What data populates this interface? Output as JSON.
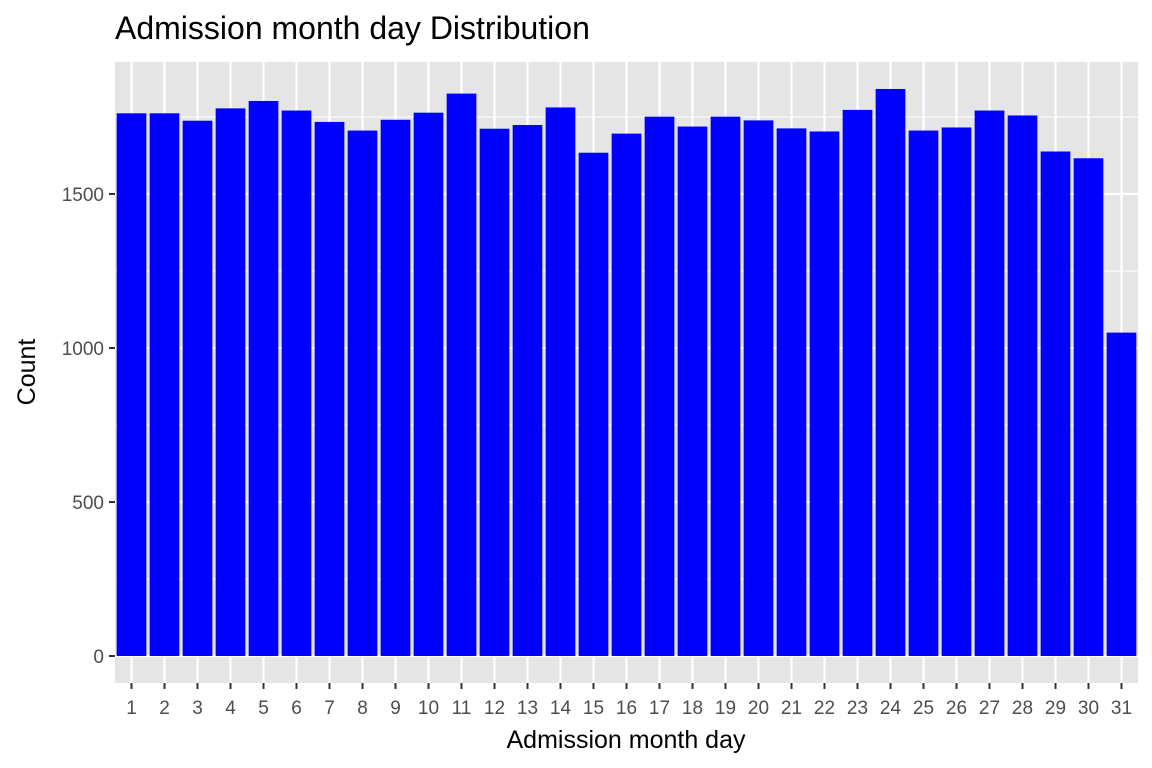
{
  "chart_data": {
    "type": "bar",
    "title": "Admission month day Distribution",
    "xlabel": "Admission month day",
    "ylabel": "Count",
    "categories": [
      "1",
      "2",
      "3",
      "4",
      "5",
      "6",
      "7",
      "8",
      "9",
      "10",
      "11",
      "12",
      "13",
      "14",
      "15",
      "16",
      "17",
      "18",
      "19",
      "20",
      "21",
      "22",
      "23",
      "24",
      "25",
      "26",
      "27",
      "28",
      "29",
      "30",
      "31"
    ],
    "values": [
      1762,
      1762,
      1738,
      1778,
      1802,
      1771,
      1734,
      1706,
      1741,
      1764,
      1826,
      1712,
      1724,
      1781,
      1634,
      1696,
      1751,
      1719,
      1751,
      1739,
      1713,
      1703,
      1773,
      1841,
      1706,
      1716,
      1771,
      1755,
      1638,
      1616,
      1050
    ],
    "ylim": [
      0,
      1900
    ],
    "yticks": [
      0,
      500,
      1000,
      1500
    ],
    "grid": true,
    "legend": "none",
    "colors": {
      "bar": "#0000ff",
      "panel": "#e5e5e5",
      "grid": "#ffffff",
      "tick": "#333333"
    }
  }
}
